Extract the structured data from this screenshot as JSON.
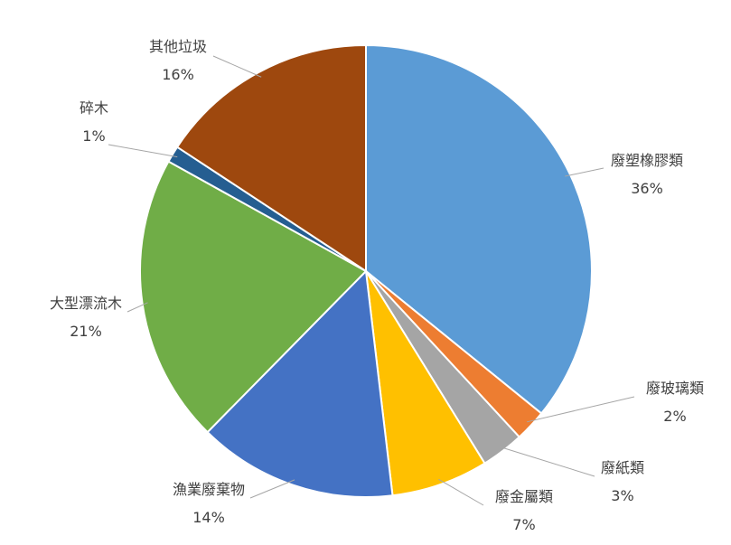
{
  "chart_data": {
    "type": "pie",
    "title": "",
    "categories": [
      "廢塑橡膠類",
      "廢玻璃類",
      "廢紙類",
      "廢金屬類",
      "漁業廢棄物",
      "大型漂流木",
      "碎木",
      "其他垃圾"
    ],
    "values": [
      36.2,
      2.3,
      3.1,
      7.0,
      14.4,
      20.9,
      1.2,
      15.9
    ],
    "percent_labels": [
      "36%",
      "2%",
      "3%",
      "7%",
      "14%",
      "21%",
      "1%",
      "16%"
    ],
    "colors": [
      "#5b9bd5",
      "#ed7d31",
      "#a5a5a5",
      "#ffc000",
      "#4472c4",
      "#70ad47",
      "#255e91",
      "#9e480e"
    ],
    "start_angle": "12 o'clock",
    "direction": "clockwise",
    "legend": "none",
    "data_labels": "outside-with-leader-lines"
  }
}
